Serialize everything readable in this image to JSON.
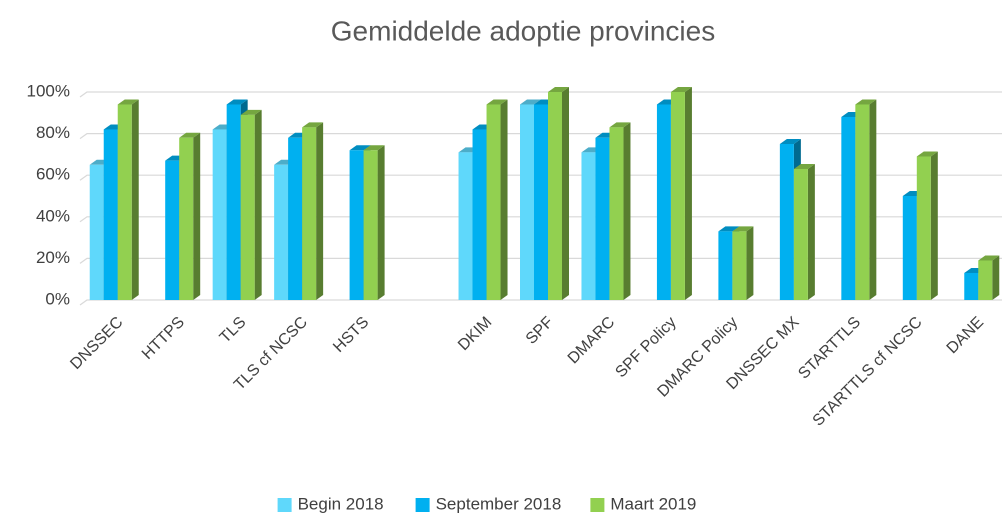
{
  "chart_data": {
    "type": "bar",
    "title": "Gemiddelde adoptie provincies",
    "categories": [
      "DNSSEC",
      "HTTPS",
      "TLS",
      "TLS cf NCSC",
      "HSTS",
      null,
      "DKIM",
      "SPF",
      "DMARC",
      "SPF Policy",
      "DMARC Policy",
      "DNSSEC MX",
      "STARTTLS",
      "STARTTLS cf NCSC",
      "DANE"
    ],
    "series": [
      {
        "name": "Begin 2018",
        "color": "#5fd8fb",
        "values": [
          65,
          null,
          82,
          65,
          null,
          null,
          71,
          94,
          71,
          null,
          null,
          null,
          null,
          null,
          null
        ]
      },
      {
        "name": "September 2018",
        "color": "#00b0f0",
        "values": [
          82,
          67,
          94,
          78,
          72,
          null,
          82,
          94,
          78,
          94,
          33,
          75,
          88,
          50,
          13
        ]
      },
      {
        "name": "Maart 2019",
        "color": "#92d050",
        "values": [
          94,
          78,
          89,
          83,
          72,
          null,
          94,
          100,
          83,
          100,
          33,
          63,
          94,
          69,
          19
        ]
      }
    ],
    "ylim": [
      0,
      100
    ],
    "yticks": [
      {
        "value": 0,
        "label": "0%"
      },
      {
        "value": 20,
        "label": "20%"
      },
      {
        "value": 40,
        "label": "40%"
      },
      {
        "value": 60,
        "label": "60%"
      },
      {
        "value": 80,
        "label": "80%"
      },
      {
        "value": 100,
        "label": "100%"
      }
    ],
    "grid": true,
    "legend": "bottom"
  }
}
